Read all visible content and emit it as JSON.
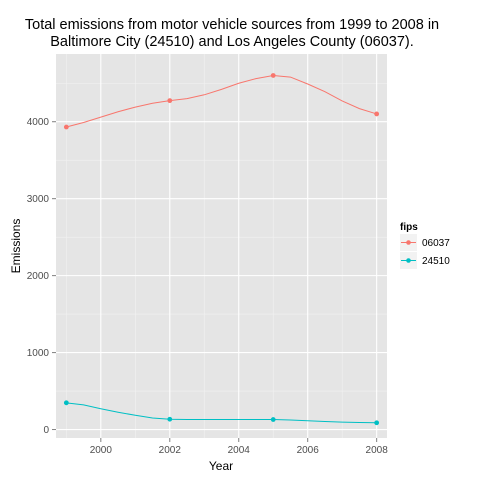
{
  "chart_data": {
    "type": "line",
    "title_lines": [
      "Total emissions from motor vehicle sources from 1999 to 2008 in",
      "Baltimore City (24510) and Los Angeles County (06037)."
    ],
    "xlabel": "Year",
    "ylabel": "Emissions",
    "x_ticks": [
      2000,
      2002,
      2004,
      2006,
      2008
    ],
    "y_ticks": [
      0,
      1000,
      2000,
      3000,
      4000
    ],
    "xlim": [
      1998.7,
      2008.3
    ],
    "ylim": [
      -110,
      4880
    ],
    "legend": {
      "title": "fips",
      "position": "right"
    },
    "series": [
      {
        "name": "06037",
        "color": "#f8766d",
        "x": [
          1999,
          2002,
          2005,
          2008
        ],
        "values": [
          3931,
          4274,
          4601,
          4101
        ],
        "smooth_x": [
          1999,
          1999.5,
          2000,
          2000.5,
          2001,
          2001.5,
          2002,
          2002.5,
          2003,
          2003.5,
          2004,
          2004.5,
          2005,
          2005.5,
          2006,
          2006.5,
          2007,
          2007.5,
          2008
        ],
        "smooth_y": [
          3931,
          3990,
          4060,
          4130,
          4190,
          4240,
          4274,
          4300,
          4350,
          4420,
          4500,
          4560,
          4601,
          4580,
          4490,
          4390,
          4270,
          4170,
          4101
        ]
      },
      {
        "name": "24510",
        "color": "#00bfc4",
        "x": [
          1999,
          2002,
          2005,
          2008
        ],
        "values": [
          347,
          134,
          130,
          88
        ],
        "smooth_x": [
          1999,
          1999.5,
          2000,
          2000.5,
          2001,
          2001.5,
          2002,
          2002.5,
          2003,
          2003.5,
          2004,
          2004.5,
          2005,
          2005.5,
          2006,
          2006.5,
          2007,
          2007.5,
          2008
        ],
        "smooth_y": [
          347,
          320,
          270,
          225,
          185,
          150,
          134,
          131,
          130,
          130,
          130,
          130,
          130,
          124,
          115,
          105,
          97,
          91,
          88
        ]
      }
    ]
  }
}
